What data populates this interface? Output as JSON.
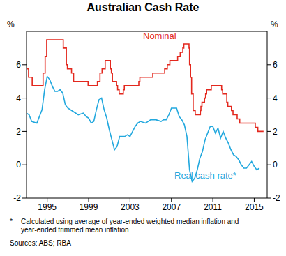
{
  "chart_data": {
    "type": "line",
    "title": "Australian Cash Rate",
    "y_label": "%",
    "xlim": [
      1993,
      2016.25
    ],
    "xticks": [
      1995,
      1999,
      2003,
      2007,
      2011,
      2015
    ],
    "ylim": [
      -2,
      8
    ],
    "yticks": [
      -2,
      0,
      2,
      4,
      6
    ],
    "grid": false,
    "series": [
      {
        "name": "Nominal",
        "color": "#e3281e",
        "line_style": "step",
        "x": [
          1993.0,
          1993.2,
          1993.55,
          1994.6,
          1994.8,
          1994.95,
          1996.55,
          1996.85,
          1996.95,
          1997.35,
          1997.55,
          1998.95,
          1999.85,
          2000.1,
          2000.3,
          2000.6,
          2001.1,
          2001.2,
          2001.3,
          2001.7,
          2001.8,
          2001.95,
          2002.35,
          2002.45,
          2003.85,
          2003.95,
          2005.2,
          2006.35,
          2006.6,
          2006.85,
          2007.6,
          2007.85,
          2008.1,
          2008.2,
          2008.7,
          2008.75,
          2008.85,
          2008.95,
          2009.1,
          2009.3,
          2009.8,
          2009.85,
          2009.95,
          2010.2,
          2010.3,
          2010.4,
          2010.85,
          2011.85,
          2011.95,
          2012.35,
          2012.45,
          2012.8,
          2012.95,
          2013.35,
          2013.6,
          2015.1,
          2015.35,
          2015.9
        ],
        "values": [
          5.75,
          5.25,
          4.75,
          5.5,
          6.5,
          7.5,
          7.0,
          6.0,
          5.75,
          5.5,
          5.0,
          4.75,
          5.0,
          5.5,
          5.75,
          6.25,
          5.75,
          5.5,
          5.0,
          4.75,
          4.5,
          4.25,
          4.5,
          4.75,
          5.0,
          5.25,
          5.5,
          5.75,
          6.0,
          6.25,
          6.5,
          6.75,
          7.0,
          7.25,
          7.0,
          6.0,
          5.25,
          4.25,
          3.25,
          3.0,
          3.25,
          3.5,
          3.75,
          4.0,
          4.25,
          4.5,
          4.75,
          4.5,
          4.25,
          3.75,
          3.5,
          3.25,
          3.0,
          2.75,
          2.5,
          2.25,
          2.0,
          2.0
        ]
      },
      {
        "name": "Real cash rate*",
        "color": "#22a8de",
        "line_style": "solid",
        "x": [
          1993.0,
          1993.25,
          1993.5,
          1994.0,
          1994.5,
          1994.75,
          1995.0,
          1995.25,
          1995.5,
          1995.75,
          1996.0,
          1996.25,
          1996.5,
          1996.75,
          1997.0,
          1997.5,
          1998.0,
          1998.5,
          1998.75,
          1999.0,
          1999.25,
          1999.5,
          1999.75,
          2000.0,
          2000.25,
          2000.5,
          2000.75,
          2001.0,
          2001.25,
          2001.5,
          2001.75,
          2002.0,
          2002.5,
          2002.75,
          2003.0,
          2003.25,
          2003.5,
          2003.75,
          2004.0,
          2004.5,
          2004.75,
          2005.0,
          2005.5,
          2006.0,
          2006.25,
          2006.5,
          2006.75,
          2007.0,
          2007.5,
          2007.75,
          2008.0,
          2008.25,
          2008.5,
          2008.75,
          2009.0,
          2009.25,
          2009.5,
          2009.75,
          2010.0,
          2010.25,
          2010.5,
          2010.75,
          2011.0,
          2011.25,
          2011.5,
          2011.75,
          2012.0,
          2012.25,
          2012.5,
          2012.75,
          2013.0,
          2013.25,
          2013.5,
          2013.75,
          2014.0,
          2014.25,
          2014.5,
          2014.75,
          2015.0,
          2015.25,
          2015.5
        ],
        "values": [
          3.1,
          3.0,
          2.6,
          2.5,
          3.3,
          4.5,
          5.3,
          5.1,
          4.7,
          4.4,
          4.4,
          4.5,
          4.3,
          3.6,
          3.4,
          3.2,
          3.0,
          3.1,
          2.9,
          2.8,
          2.5,
          2.6,
          3.3,
          3.9,
          4.0,
          3.3,
          2.8,
          2.1,
          1.5,
          0.9,
          1.1,
          1.7,
          1.7,
          1.8,
          1.7,
          2.0,
          2.3,
          2.5,
          2.6,
          2.5,
          2.6,
          2.7,
          2.7,
          2.6,
          2.7,
          2.7,
          3.0,
          3.4,
          3.4,
          2.9,
          2.7,
          2.4,
          1.7,
          -0.3,
          -1.0,
          -0.8,
          -0.3,
          0.4,
          0.8,
          1.5,
          1.9,
          2.3,
          2.3,
          1.9,
          2.2,
          1.6,
          2.0,
          1.6,
          1.3,
          0.9,
          0.6,
          0.5,
          0.3,
          0.0,
          -0.2,
          -0.2,
          0.0,
          0.2,
          -0.1,
          -0.3,
          -0.2
        ]
      }
    ],
    "footnote": "Calculated using average of year-ended weighted median inflation and year-ended trimmed mean inflation",
    "footnote_mark": "*",
    "source": "Sources: ABS; RBA"
  }
}
